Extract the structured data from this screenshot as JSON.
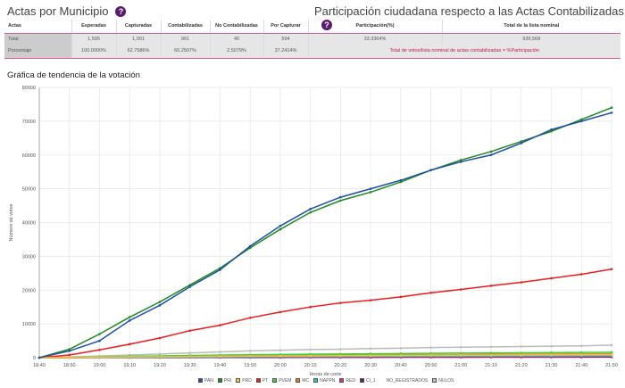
{
  "header": {
    "left_title": "Actas por Municipio",
    "right_title": "Participación ciudadana respecto a las Actas Contabilizadas",
    "help": "?"
  },
  "table": {
    "headers": [
      "Actas",
      "Esperadas",
      "Capturadas",
      "Contabilizadas",
      "No Contabilizadas",
      "Por Capturar",
      "Participación(%)",
      "Total de la lista nominal"
    ],
    "total": [
      "Total",
      "1,595",
      "1,001",
      "961",
      "40",
      "594",
      "33.3364%",
      "939,568"
    ],
    "pct": [
      "Porcentaje",
      "100.0000%",
      "62.7586%",
      "60.2507%",
      "2.5079%",
      "37.2414%"
    ],
    "note": "Total de votos/lista nominal de actas contabilizadas = %Participación"
  },
  "chart_title": "Gráfica de tendencia de la votación",
  "chart_data": {
    "type": "line",
    "xlabel": "Horas de corte",
    "ylabel": "Número de votos",
    "ylim": [
      0,
      80000
    ],
    "yticks": [
      "0",
      "10000",
      "20000",
      "30000",
      "40000",
      "50000",
      "60000",
      "70000",
      "80000"
    ],
    "x": [
      "18:40",
      "18:50",
      "19:00",
      "19:10",
      "19:20",
      "19:30",
      "19:40",
      "19:50",
      "20:00",
      "20:10",
      "20:20",
      "20:30",
      "20:40",
      "20:50",
      "21:00",
      "21:10",
      "21:20",
      "21:30",
      "21:40",
      "21:50"
    ],
    "series": [
      {
        "name": "PAN",
        "color": "#1f4fa8",
        "values": [
          0,
          2000,
          5000,
          11000,
          15500,
          21000,
          26000,
          33000,
          39000,
          44000,
          47500,
          50000,
          52500,
          55500,
          58000,
          60000,
          63500,
          67500,
          70000,
          72500
        ]
      },
      {
        "name": "PRI",
        "color": "#1e8a1e",
        "values": [
          0,
          2500,
          7000,
          12000,
          16500,
          21500,
          26500,
          32500,
          38000,
          43000,
          46500,
          49000,
          52000,
          55500,
          58500,
          61000,
          64000,
          67000,
          70500,
          74000
        ]
      },
      {
        "name": "PRD",
        "color": "#f5c242",
        "values": [
          0,
          80,
          150,
          220,
          280,
          340,
          400,
          450,
          500,
          540,
          580,
          620,
          660,
          700,
          730,
          760,
          790,
          820,
          850,
          880
        ]
      },
      {
        "name": "PT",
        "color": "#ee1c1c",
        "values": [
          0,
          800,
          2300,
          4000,
          5800,
          8000,
          9600,
          11800,
          13500,
          15000,
          16200,
          17000,
          18000,
          19200,
          20200,
          21300,
          22300,
          23500,
          24700,
          26200
        ]
      },
      {
        "name": "PVEM",
        "color": "#3bd13b",
        "values": [
          0,
          100,
          250,
          400,
          520,
          650,
          760,
          870,
          950,
          1030,
          1100,
          1170,
          1230,
          1300,
          1350,
          1400,
          1450,
          1500,
          1550,
          1600
        ]
      },
      {
        "name": "MC",
        "color": "#f57c1f",
        "values": [
          0,
          80,
          200,
          300,
          380,
          460,
          530,
          600,
          660,
          720,
          770,
          820,
          860,
          900,
          940,
          980,
          1020,
          1060,
          1100,
          1150
        ]
      },
      {
        "name": "NAPPN",
        "color": "#2bc4c4",
        "values": [
          0,
          40,
          90,
          140,
          180,
          220,
          260,
          300,
          330,
          360,
          390,
          420,
          440,
          460,
          480,
          500,
          520,
          540,
          560,
          580
        ]
      },
      {
        "name": "RED",
        "color": "#e0278a",
        "values": [
          0,
          30,
          60,
          90,
          120,
          150,
          170,
          190,
          210,
          230,
          250,
          270,
          290,
          300,
          310,
          320,
          330,
          340,
          350,
          360
        ]
      },
      {
        "name": "CI_1",
        "color": "#5b1a6e",
        "values": [
          0,
          10,
          20,
          30,
          40,
          50,
          60,
          70,
          80,
          90,
          100,
          110,
          120,
          130,
          140,
          150,
          160,
          170,
          180,
          190
        ]
      },
      {
        "name": "NO_REGISTRADOS",
        "color": "#ffffff",
        "values": [
          0,
          2,
          4,
          6,
          8,
          10,
          12,
          14,
          16,
          18,
          20,
          22,
          24,
          26,
          28,
          30,
          32,
          34,
          36,
          38
        ]
      },
      {
        "name": "NULOS",
        "color": "#bbbbbb",
        "values": [
          0,
          200,
          500,
          800,
          1100,
          1400,
          1700,
          2000,
          2200,
          2400,
          2500,
          2700,
          2800,
          3000,
          3100,
          3200,
          3300,
          3400,
          3500,
          3700
        ]
      }
    ]
  }
}
